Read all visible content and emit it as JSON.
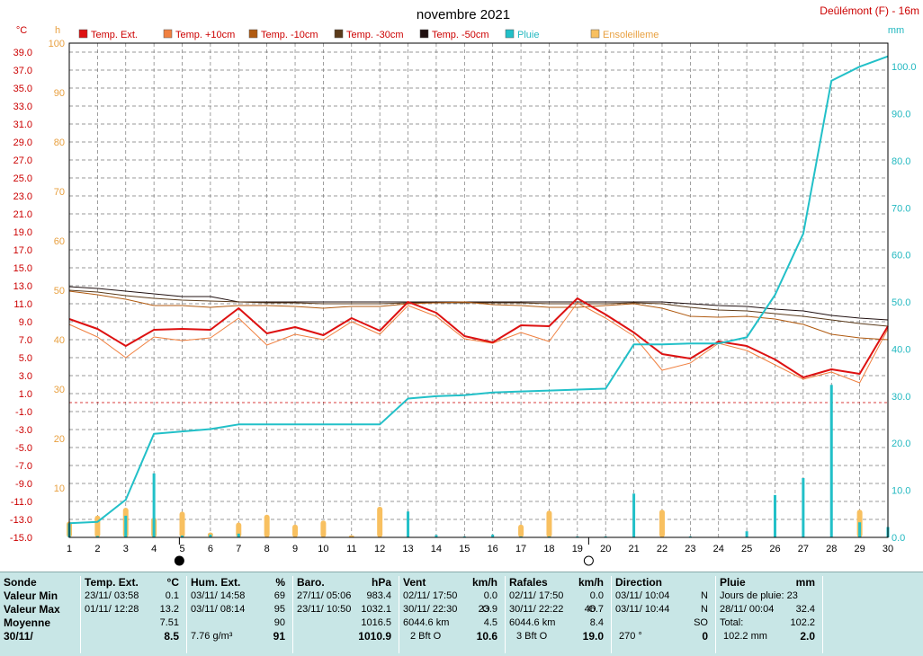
{
  "header": {
    "title": "novembre 2021",
    "station": "Deûlémont (F) - 16m"
  },
  "axis_units": {
    "left_temp": "°C",
    "left_hours": "h",
    "right_rain": "mm"
  },
  "legend": [
    {
      "label": "Temp. Ext.",
      "color": "#dd1111"
    },
    {
      "label": "Temp. +10cm",
      "color": "#f08040"
    },
    {
      "label": "Temp. -10cm",
      "color": "#b05a10"
    },
    {
      "label": "Temp. -30cm",
      "color": "#5a3a1a"
    },
    {
      "label": "Temp. -50cm",
      "color": "#201010"
    },
    {
      "label": "Pluie",
      "color": "#22c0c8"
    },
    {
      "label": "Ensoleilleme",
      "color": "#f8c060"
    }
  ],
  "chart_data": {
    "type": "line",
    "title": "novembre 2021",
    "x": [
      1,
      2,
      3,
      4,
      5,
      6,
      7,
      8,
      9,
      10,
      11,
      12,
      13,
      14,
      15,
      16,
      17,
      18,
      19,
      20,
      21,
      22,
      23,
      24,
      25,
      26,
      27,
      28,
      29,
      30
    ],
    "temp_axis": {
      "unit": "°C",
      "ylim": [
        -15,
        40
      ],
      "ticks": [
        -15,
        -13,
        -11,
        -9,
        -7,
        -5,
        -3,
        -1,
        1,
        3,
        5,
        7,
        9,
        11,
        13,
        15,
        17,
        19,
        21,
        23,
        25,
        27,
        29,
        31,
        33,
        35,
        37,
        39
      ]
    },
    "hours_axis": {
      "unit": "h",
      "ylim": [
        0,
        100
      ],
      "ticks": [
        10,
        20,
        30,
        40,
        50,
        60,
        70,
        80,
        90,
        100
      ]
    },
    "rain_axis": {
      "unit": "mm",
      "ylim": [
        0,
        105
      ],
      "ticks": [
        0.0,
        10.0,
        20.0,
        30.0,
        40.0,
        50.0,
        60.0,
        70.0,
        80.0,
        90.0,
        100.0
      ]
    },
    "grid": true,
    "freezing_line": 0,
    "series": [
      {
        "name": "Temp. Ext.",
        "axis": "temp",
        "color": "#dd1111",
        "width": 2,
        "values": [
          9.3,
          8.2,
          6.3,
          8.1,
          8.2,
          8.1,
          10.5,
          7.7,
          8.4,
          7.5,
          9.4,
          8.0,
          11.2,
          10.0,
          7.4,
          6.7,
          8.6,
          8.5,
          11.6,
          9.8,
          7.8,
          5.4,
          4.9,
          6.8,
          6.3,
          4.8,
          2.8,
          3.7,
          3.2,
          8.5
        ]
      },
      {
        "name": "Temp. +10cm",
        "axis": "temp",
        "color": "#f08040",
        "width": 1,
        "values": [
          8.7,
          7.3,
          5.0,
          7.3,
          6.9,
          7.2,
          9.4,
          6.4,
          7.6,
          7.0,
          9.0,
          7.6,
          10.8,
          9.6,
          7.1,
          6.6,
          7.8,
          6.8,
          11.1,
          9.4,
          7.4,
          3.6,
          4.4,
          6.6,
          5.8,
          4.2,
          2.6,
          3.4,
          2.2,
          8.2
        ]
      },
      {
        "name": "Temp. -10cm",
        "axis": "temp",
        "color": "#b05a10",
        "width": 1,
        "values": [
          12.4,
          12.0,
          11.5,
          10.8,
          10.8,
          10.6,
          10.8,
          10.8,
          10.7,
          10.5,
          10.7,
          10.7,
          11.0,
          11.1,
          11.2,
          10.9,
          10.8,
          10.6,
          10.6,
          10.8,
          11.0,
          10.5,
          9.6,
          9.5,
          9.6,
          9.3,
          8.7,
          7.6,
          7.2,
          7.0
        ]
      },
      {
        "name": "Temp. -30cm",
        "axis": "temp",
        "color": "#5a3a1a",
        "width": 1,
        "values": [
          12.5,
          12.3,
          11.9,
          11.6,
          11.4,
          11.3,
          11.2,
          11.1,
          11.1,
          11.0,
          11.0,
          11.0,
          11.1,
          11.1,
          11.1,
          11.1,
          11.1,
          11.0,
          11.0,
          11.0,
          11.1,
          11.0,
          10.6,
          10.3,
          10.2,
          9.9,
          9.6,
          9.2,
          8.8,
          8.5
        ]
      },
      {
        "name": "Temp. -50cm",
        "axis": "temp",
        "color": "#201010",
        "width": 1,
        "values": [
          12.9,
          12.7,
          12.4,
          12.1,
          11.8,
          11.8,
          11.2,
          11.2,
          11.2,
          11.2,
          11.2,
          11.2,
          11.2,
          11.2,
          11.2,
          11.2,
          11.2,
          11.2,
          11.2,
          11.2,
          11.2,
          11.2,
          11.0,
          10.8,
          10.7,
          10.4,
          10.2,
          9.7,
          9.4,
          9.2
        ]
      },
      {
        "name": "Pluie",
        "axis": "rain",
        "color": "#22c0c8",
        "width": 2,
        "values": [
          3.0,
          3.3,
          8.0,
          22.0,
          22.5,
          23.0,
          24.0,
          24.0,
          24.0,
          24.0,
          24.0,
          24.0,
          29.5,
          30.0,
          30.2,
          30.8,
          31.0,
          31.2,
          31.4,
          31.6,
          41.0,
          41.0,
          41.2,
          41.2,
          42.5,
          51.5,
          64.5,
          97.0,
          100.0,
          102.2
        ]
      }
    ],
    "rain_daily": [
      3.0,
      0.3,
      4.6,
      13.6,
      0.4,
      0.6,
      0.8,
      0.0,
      0.0,
      0.0,
      0.0,
      0.0,
      5.5,
      0.5,
      0.2,
      0.6,
      0.2,
      0.2,
      0.2,
      0.2,
      9.3,
      0.0,
      0.2,
      0.0,
      1.3,
      9.0,
      12.6,
      32.4,
      3.2,
      2.2
    ],
    "sunshine_hours": [
      1.6,
      2.2,
      3.0,
      2.0,
      2.6,
      0.5,
      1.5,
      2.3,
      1.3,
      1.7,
      0.2,
      3.1,
      0.0,
      0.0,
      0.0,
      0.0,
      1.3,
      2.7,
      0.0,
      0.0,
      0.0,
      2.8,
      0.0,
      0.0,
      0.0,
      0.0,
      0.0,
      0.0,
      2.8,
      0.0
    ]
  },
  "moon_phases": [
    {
      "day": 4.9,
      "type": "new"
    },
    {
      "day": 19.4,
      "type": "full"
    }
  ],
  "stats": {
    "row_labels": [
      "Sonde",
      "Valeur Min",
      "Valeur Max",
      "Moyenne",
      "30/11/"
    ],
    "temp": {
      "title": "Temp. Ext.",
      "unit": "°C",
      "min_time": "23/11/  03:58",
      "min": "0.1",
      "max_time": "01/11/  12:28",
      "max": "13.2",
      "avg": "7.51",
      "cur": "8.5"
    },
    "hum": {
      "title": "Hum. Ext.",
      "unit": "%",
      "min_time": "03/11/  14:58",
      "min": "69",
      "max_time": "03/11/  08:14",
      "max": "95",
      "avg": "90",
      "cur_extra": "7.76 g/m³",
      "cur": "91"
    },
    "baro": {
      "title": "Baro.",
      "unit": "hPa",
      "min_time": "27/11/  05:06",
      "min": "983.4",
      "max_time": "23/11/  10:50",
      "max": "1032.1",
      "avg": "1016.5",
      "cur": "1010.9"
    },
    "vent": {
      "title": "Vent",
      "unit": "km/h",
      "min_time": "02/11/  17:50",
      "min": "0.0",
      "max_time": "30/11/  22:30",
      "max_dir": "O",
      "max": "23.9",
      "avg_extra": "6044.6 km",
      "avg": "4.5",
      "cur_extra": "2 Bft O",
      "cur": "10.6"
    },
    "raf": {
      "title": "Rafales",
      "unit": "km/h",
      "min_time": "02/11/  17:50",
      "min": "0.0",
      "max_time": "30/11/  22:22",
      "max_dir": "O",
      "max": "46.7",
      "avg_extra": "6044.6 km",
      "avg": "8.4",
      "cur_extra": "3 Bft O",
      "cur": "19.0"
    },
    "dir": {
      "title": "Direction",
      "min_time": "03/11/  10:04",
      "min": "N",
      "max_time": "03/11/  10:44",
      "max": "N",
      "avg": "SO",
      "cur_extra": "270 °",
      "cur": "0"
    },
    "pluie": {
      "title": "Pluie",
      "unit": "mm",
      "row1_label": "Jours de pluie: 23",
      "row2_time": "28/11/  00:04",
      "row2": "32.4",
      "row3_label": "Total:",
      "row3": "102.2",
      "cur_extra": "102.2 mm",
      "cur": "2.0"
    }
  }
}
